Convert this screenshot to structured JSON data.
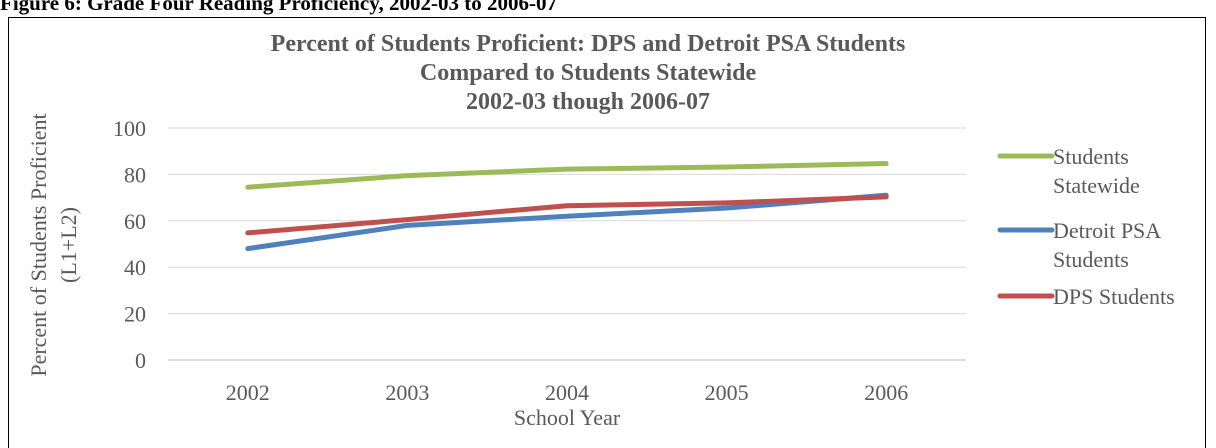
{
  "figure_caption": "Figure 6: Grade Four Reading Proficiency, 2002-03 to 2006-07",
  "chart_data": {
    "type": "line",
    "title_lines": [
      "Percent of Students Proficient: DPS and Detroit PSA Students",
      "Compared to Students Statewide",
      "2002-03 though 2006-07"
    ],
    "xlabel": "School Year",
    "ylabel_lines": [
      "Percent of Students Proficient",
      "(L1+L2)"
    ],
    "categories": [
      "2002",
      "2003",
      "2004",
      "2005",
      "2006"
    ],
    "ylim": [
      0,
      100
    ],
    "yticks": [
      0,
      20,
      40,
      60,
      80,
      100
    ],
    "grid": true,
    "legend_position": "right",
    "series": [
      {
        "name_lines": [
          "Students",
          "Statewide"
        ],
        "color": "#9BBB59",
        "values": [
          74.5,
          79.5,
          82.3,
          83.2,
          84.7
        ]
      },
      {
        "name_lines": [
          "Detroit PSA",
          "Students"
        ],
        "color": "#4F81BD",
        "values": [
          48.0,
          58.0,
          62.0,
          65.5,
          71.0
        ]
      },
      {
        "name_lines": [
          "DPS Students"
        ],
        "color": "#C0504D",
        "values": [
          54.8,
          60.5,
          66.5,
          67.7,
          70.3
        ]
      }
    ]
  }
}
